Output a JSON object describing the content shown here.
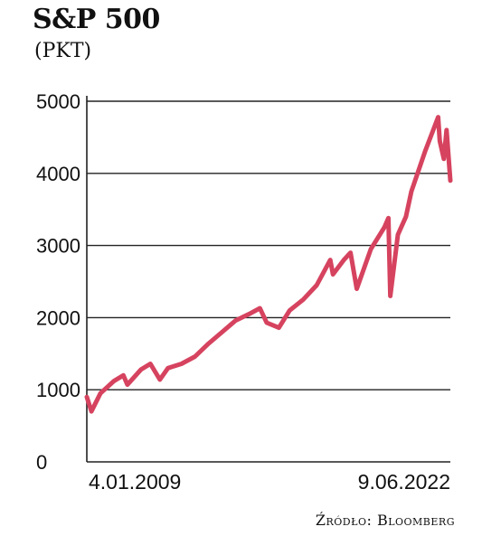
{
  "chart_data": {
    "type": "line",
    "title": "S&P 500",
    "subtitle": "(PKT)",
    "source": "Źródło: Bloomberg",
    "ylim": [
      0,
      5000
    ],
    "yticks": [
      0,
      1000,
      2000,
      3000,
      4000,
      5000
    ],
    "ytick_labels": [
      "0",
      "1000",
      "2000",
      "3000",
      "4000",
      "5000"
    ],
    "xtick_labels": [
      "4.01.2009",
      "9.06.2022"
    ],
    "grid": true,
    "line_color": "#d6435f",
    "series": [
      {
        "x": [
          2009.0,
          2009.17,
          2009.5,
          2010.0,
          2010.35,
          2010.5,
          2011.0,
          2011.35,
          2011.7,
          2012.0,
          2012.5,
          2013.0,
          2013.5,
          2014.0,
          2014.5,
          2015.0,
          2015.4,
          2015.65,
          2016.1,
          2016.5,
          2017.0,
          2017.5,
          2018.0,
          2018.1,
          2018.5,
          2018.75,
          2018.98,
          2019.5,
          2020.0,
          2020.15,
          2020.22,
          2020.5,
          2020.8,
          2021.0,
          2021.5,
          2021.99,
          2022.05,
          2022.2,
          2022.3,
          2022.4,
          2022.44
        ],
        "y": [
          900,
          700,
          950,
          1120,
          1200,
          1070,
          1280,
          1360,
          1140,
          1300,
          1360,
          1460,
          1640,
          1800,
          1960,
          2050,
          2130,
          1930,
          1860,
          2100,
          2250,
          2450,
          2800,
          2600,
          2800,
          2900,
          2400,
          2950,
          3250,
          3380,
          2300,
          3150,
          3400,
          3750,
          4300,
          4780,
          4450,
          4200,
          4600,
          4100,
          3900
        ]
      }
    ]
  }
}
